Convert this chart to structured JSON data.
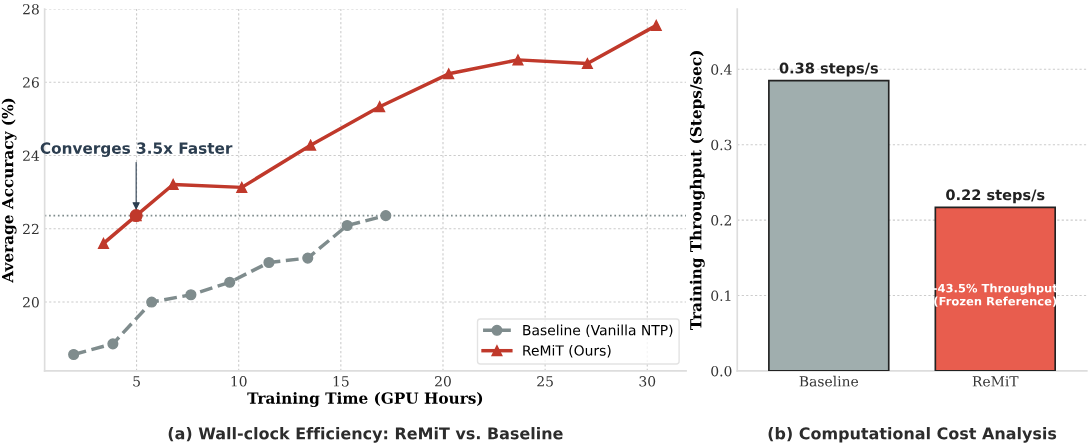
{
  "chart_data": [
    {
      "type": "line",
      "title": "(a) Wall-clock Efficiency: ReMiT vs. Baseline",
      "xlabel": "Training Time (GPU Hours)",
      "ylabel": "Average Accuracy (%)",
      "xlim": [
        0.5,
        31.9
      ],
      "ylim": [
        18.12,
        28
      ],
      "xticks": [
        5,
        10,
        15,
        20,
        25,
        30
      ],
      "yticks": [
        20,
        22,
        24,
        26,
        28
      ],
      "grid": true,
      "legend": "bottom right",
      "series": [
        {
          "name": "Baseline (Vanilla NTP)",
          "color": "#7f8c8d",
          "marker": "circle",
          "line_style": "dashed",
          "x": [
            1.92,
            3.84,
            5.74,
            7.66,
            9.56,
            11.48,
            13.38,
            15.31,
            17.2
          ],
          "values": [
            18.57,
            18.86,
            20.0,
            20.2,
            20.54,
            21.08,
            21.2,
            22.09,
            22.36
          ]
        },
        {
          "name": "ReMiT (Ours)",
          "color": "#c0392b",
          "marker": "triangle",
          "line_style": "solid",
          "x": [
            3.38,
            4.98,
            6.79,
            10.15,
            13.52,
            16.9,
            20.28,
            23.67,
            27.07,
            30.44
          ],
          "values": [
            21.6,
            22.36,
            23.21,
            23.13,
            24.28,
            25.33,
            26.23,
            26.61,
            26.51,
            27.55
          ]
        },
        {
          "type": "scatter",
          "color": "#c0392b",
          "marker": "circle",
          "x": [
            4.98
          ],
          "values": [
            22.36
          ]
        }
      ],
      "ref_lines": [
        {
          "axis": "y",
          "value": 22.36,
          "color": "#7f8c8d",
          "line_style": "dotted"
        }
      ],
      "annotations": [
        {
          "text": "Converges 3.5x Faster",
          "x": 4.98,
          "y": 22.36
        }
      ]
    },
    {
      "type": "bar",
      "title": "(b) Computational Cost Analysis",
      "ylabel": "Training Throughput (Steps/sec)",
      "categories": [
        "Baseline",
        "ReMiT"
      ],
      "values": [
        0.385,
        0.217
      ],
      "colors": [
        "#a0aeae",
        "#e85d4e"
      ],
      "value_labels": [
        "0.38 steps/s",
        "0.22 steps/s"
      ],
      "ylim": [
        0,
        0.48
      ],
      "yticks": [
        {
          "value": 0,
          "label": "0.0"
        },
        0.1,
        0.2,
        0.3,
        0.4
      ],
      "grid": "y",
      "annotations": [
        "-43.5% Throughput\n(Frozen Reference)"
      ]
    }
  ]
}
